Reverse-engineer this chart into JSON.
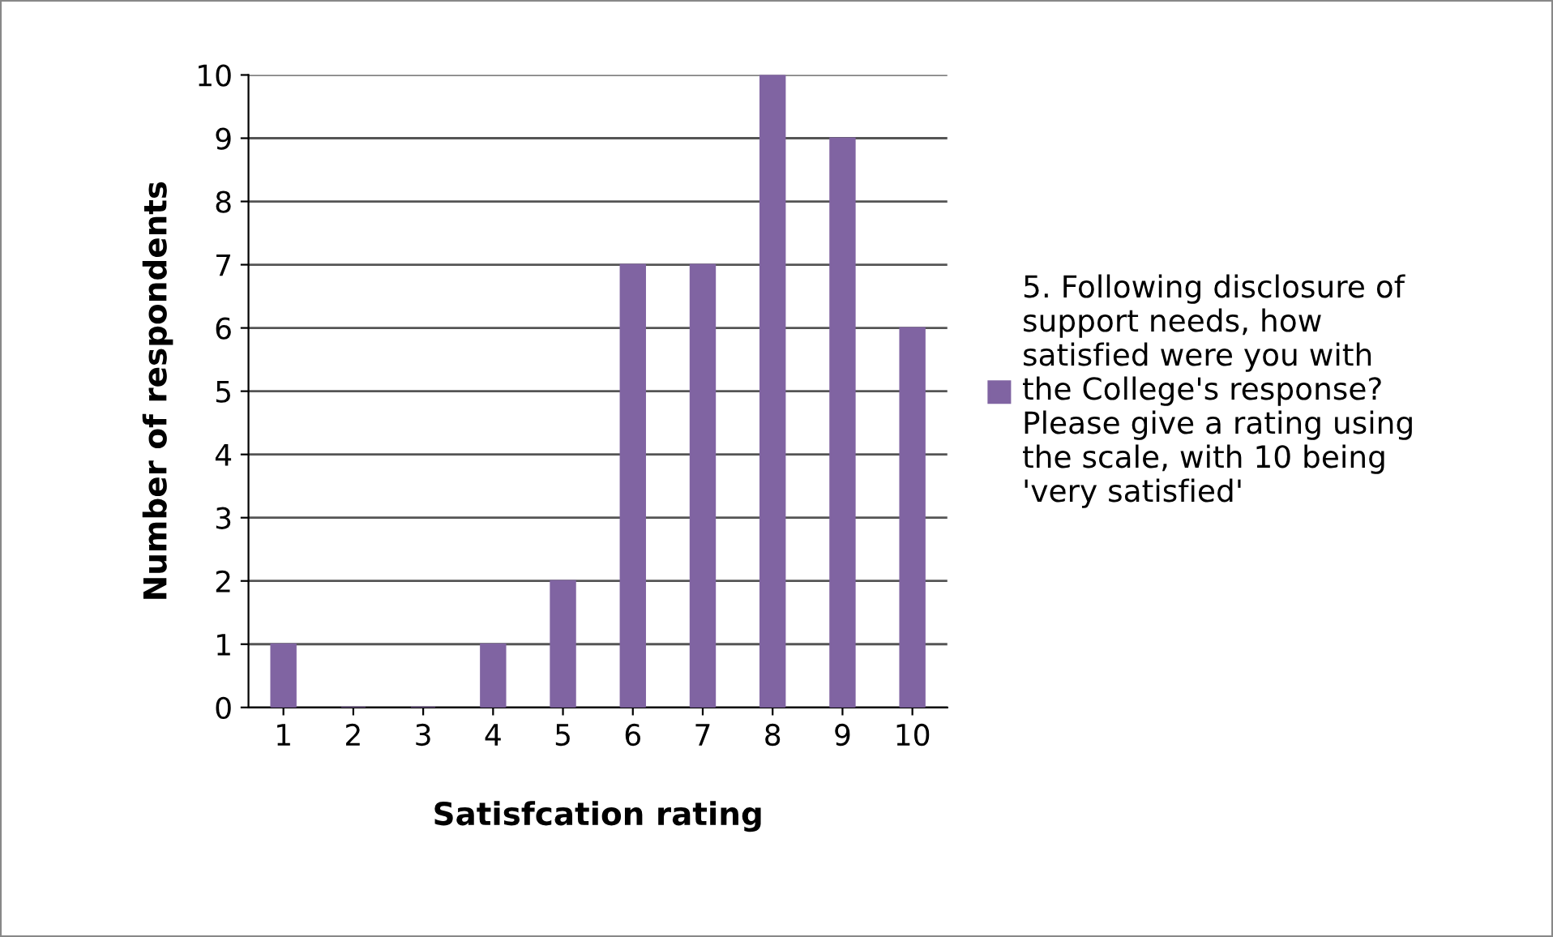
{
  "chart_data": {
    "type": "bar",
    "xlabel": "Satisfcation rating",
    "ylabel": "Number of respondents",
    "categories": [
      "1",
      "2",
      "3",
      "4",
      "5",
      "6",
      "7",
      "8",
      "9",
      "10"
    ],
    "series": [
      {
        "name": "5. Following disclosure of\nsupport needs, how\nsatisfied were you with\nthe College's response?\nPlease give a rating using\nthe scale, with 10 being\n'very satisfied'",
        "color": "#8064a2",
        "values": [
          1,
          0,
          0,
          1,
          2,
          7,
          7,
          10,
          9,
          6
        ]
      }
    ],
    "ylim": [
      0,
      10
    ],
    "yticks": [
      0,
      1,
      2,
      3,
      4,
      5,
      6,
      7,
      8,
      9,
      10
    ],
    "grid": "y",
    "legend": "right"
  }
}
